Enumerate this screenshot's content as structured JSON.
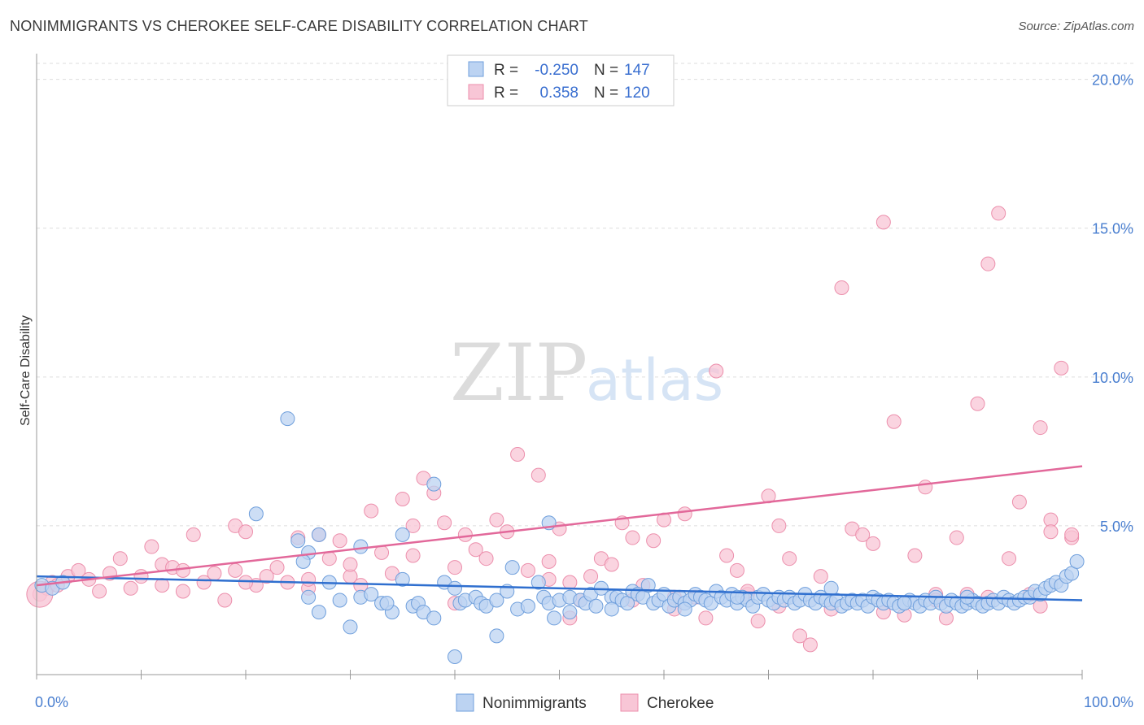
{
  "header": {
    "title": "NONIMMIGRANTS VS CHEROKEE SELF-CARE DISABILITY CORRELATION CHART",
    "source": "Source: ZipAtlas.com"
  },
  "watermark": {
    "zip": "ZIP",
    "atlas": "atlas"
  },
  "colors": {
    "blue_fill": "#bcd3f2",
    "blue_stroke": "#6f9fdc",
    "blue_line": "#2f6fcf",
    "pink_fill": "#f8c6d6",
    "pink_stroke": "#ec8fac",
    "pink_line": "#e2689a",
    "grid": "#dddddd",
    "tick_label": "#4a7fd0"
  },
  "legend_top": {
    "rows": [
      {
        "r_label": "R =",
        "r_value": "-0.250",
        "n_label": "N =",
        "n_value": "147"
      },
      {
        "r_label": "R =",
        "r_value": "0.358",
        "n_label": "N =",
        "n_value": "120"
      }
    ]
  },
  "legend_bottom": {
    "items": [
      "Nonimmigrants",
      "Cherokee"
    ]
  },
  "chart_data": {
    "type": "scatter",
    "title": "NONIMMIGRANTS VS CHEROKEE SELF-CARE DISABILITY CORRELATION CHART",
    "xlabel": "",
    "ylabel": "Self-Care Disability",
    "xlim": [
      0,
      100
    ],
    "ylim": [
      0,
      20.7
    ],
    "x_tick_labels": [
      "0.0%",
      "100.0%"
    ],
    "y_ticks": [
      5,
      10,
      15,
      20
    ],
    "y_tick_labels": [
      "5.0%",
      "10.0%",
      "15.0%",
      "20.0%"
    ],
    "grid": true,
    "legend_placement": "top-center",
    "series": [
      {
        "name": "Nonimmigrants",
        "trend": {
          "x": [
            0,
            100
          ],
          "y": [
            3.3,
            2.5
          ]
        },
        "points": [
          [
            0.5,
            3.0
          ],
          [
            1.5,
            2.9
          ],
          [
            2.5,
            3.1
          ],
          [
            24,
            8.6
          ],
          [
            21,
            5.4
          ],
          [
            31,
            4.3
          ],
          [
            25,
            4.5
          ],
          [
            26,
            4.1
          ],
          [
            25.5,
            3.8
          ],
          [
            27,
            4.7
          ],
          [
            35,
            4.7
          ],
          [
            38,
            6.4
          ],
          [
            49,
            5.1
          ],
          [
            26,
            2.6
          ],
          [
            27,
            2.1
          ],
          [
            28,
            3.1
          ],
          [
            29,
            2.5
          ],
          [
            30,
            1.6
          ],
          [
            31,
            2.6
          ],
          [
            32,
            2.7
          ],
          [
            33,
            2.4
          ],
          [
            34,
            2.1
          ],
          [
            35,
            3.2
          ],
          [
            36,
            2.3
          ],
          [
            36.5,
            2.4
          ],
          [
            37,
            2.1
          ],
          [
            38,
            1.9
          ],
          [
            39,
            3.1
          ],
          [
            40,
            2.9
          ],
          [
            40.5,
            2.4
          ],
          [
            41,
            2.5
          ],
          [
            42,
            2.6
          ],
          [
            42.5,
            2.4
          ],
          [
            43,
            2.3
          ],
          [
            44,
            2.5
          ],
          [
            45,
            2.8
          ],
          [
            45.5,
            3.6
          ],
          [
            46,
            2.2
          ],
          [
            47,
            2.3
          ],
          [
            48,
            3.1
          ],
          [
            48.5,
            2.6
          ],
          [
            49,
            2.4
          ],
          [
            49.5,
            1.9
          ],
          [
            50,
            2.5
          ],
          [
            51,
            2.6
          ],
          [
            52,
            2.5
          ],
          [
            52.5,
            2.4
          ],
          [
            53,
            2.7
          ],
          [
            53.5,
            2.3
          ],
          [
            54,
            2.9
          ],
          [
            55,
            2.6
          ],
          [
            55.5,
            2.6
          ],
          [
            56,
            2.5
          ],
          [
            56.5,
            2.4
          ],
          [
            57,
            2.8
          ],
          [
            57.5,
            2.7
          ],
          [
            58,
            2.6
          ],
          [
            58.5,
            3.0
          ],
          [
            59,
            2.4
          ],
          [
            59.5,
            2.5
          ],
          [
            60,
            2.7
          ],
          [
            60.5,
            2.3
          ],
          [
            61,
            2.5
          ],
          [
            61.5,
            2.6
          ],
          [
            62,
            2.4
          ],
          [
            62.5,
            2.5
          ],
          [
            63,
            2.7
          ],
          [
            63.5,
            2.6
          ],
          [
            64,
            2.5
          ],
          [
            64.5,
            2.4
          ],
          [
            65,
            2.8
          ],
          [
            65.5,
            2.6
          ],
          [
            66,
            2.5
          ],
          [
            66.5,
            2.7
          ],
          [
            67,
            2.4
          ],
          [
            67.5,
            2.6
          ],
          [
            68,
            2.5
          ],
          [
            68.5,
            2.3
          ],
          [
            69,
            2.6
          ],
          [
            69.5,
            2.7
          ],
          [
            70,
            2.5
          ],
          [
            70.5,
            2.4
          ],
          [
            71,
            2.6
          ],
          [
            71.5,
            2.5
          ],
          [
            72,
            2.6
          ],
          [
            72.5,
            2.4
          ],
          [
            73,
            2.5
          ],
          [
            73.5,
            2.7
          ],
          [
            74,
            2.5
          ],
          [
            74.5,
            2.4
          ],
          [
            75,
            2.6
          ],
          [
            75.5,
            2.5
          ],
          [
            76,
            2.4
          ],
          [
            76.5,
            2.5
          ],
          [
            77,
            2.3
          ],
          [
            77.5,
            2.4
          ],
          [
            78,
            2.5
          ],
          [
            78.5,
            2.4
          ],
          [
            79,
            2.5
          ],
          [
            79.5,
            2.3
          ],
          [
            80,
            2.6
          ],
          [
            80.5,
            2.5
          ],
          [
            81,
            2.4
          ],
          [
            81.5,
            2.5
          ],
          [
            82,
            2.4
          ],
          [
            82.5,
            2.3
          ],
          [
            83,
            2.4
          ],
          [
            83.5,
            2.5
          ],
          [
            84,
            2.4
          ],
          [
            84.5,
            2.3
          ],
          [
            85,
            2.5
          ],
          [
            85.5,
            2.4
          ],
          [
            86,
            2.6
          ],
          [
            86.5,
            2.4
          ],
          [
            87,
            2.3
          ],
          [
            87.5,
            2.5
          ],
          [
            88,
            2.4
          ],
          [
            88.5,
            2.3
          ],
          [
            89,
            2.4
          ],
          [
            89.5,
            2.5
          ],
          [
            90,
            2.4
          ],
          [
            90.5,
            2.3
          ],
          [
            91,
            2.4
          ],
          [
            91.5,
            2.5
          ],
          [
            92,
            2.4
          ],
          [
            92.5,
            2.6
          ],
          [
            93,
            2.5
          ],
          [
            93.5,
            2.4
          ],
          [
            94,
            2.5
          ],
          [
            94.5,
            2.6
          ],
          [
            95,
            2.6
          ],
          [
            95.5,
            2.8
          ],
          [
            96,
            2.7
          ],
          [
            96.5,
            2.9
          ],
          [
            97,
            3.0
          ],
          [
            97.5,
            3.1
          ],
          [
            98,
            3.0
          ],
          [
            98.5,
            3.3
          ],
          [
            99,
            3.4
          ],
          [
            99.5,
            3.8
          ],
          [
            55,
            2.2
          ],
          [
            40,
            0.6
          ],
          [
            44,
            1.3
          ],
          [
            33.5,
            2.4
          ],
          [
            51,
            2.1
          ],
          [
            62,
            2.2
          ],
          [
            67,
            2.6
          ],
          [
            76,
            2.9
          ],
          [
            83,
            2.4
          ],
          [
            89,
            2.6
          ]
        ]
      },
      {
        "name": "Cherokee",
        "trend": {
          "x": [
            0,
            100
          ],
          "y": [
            3.0,
            7.0
          ]
        },
        "points": [
          [
            0.3,
            2.7
          ],
          [
            1,
            2.9
          ],
          [
            1.5,
            3.1
          ],
          [
            2,
            3.0
          ],
          [
            3,
            3.3
          ],
          [
            4,
            3.5
          ],
          [
            5,
            3.2
          ],
          [
            6,
            2.8
          ],
          [
            7,
            3.4
          ],
          [
            8,
            3.9
          ],
          [
            9,
            2.9
          ],
          [
            10,
            3.3
          ],
          [
            11,
            4.3
          ],
          [
            12,
            3.7
          ],
          [
            13,
            3.6
          ],
          [
            14,
            2.8
          ],
          [
            15,
            4.7
          ],
          [
            16,
            3.1
          ],
          [
            17,
            3.4
          ],
          [
            18,
            2.5
          ],
          [
            19,
            5.0
          ],
          [
            20,
            4.8
          ],
          [
            21,
            3.0
          ],
          [
            22,
            3.3
          ],
          [
            23,
            3.6
          ],
          [
            24,
            3.1
          ],
          [
            25,
            4.6
          ],
          [
            26,
            2.9
          ],
          [
            27,
            4.7
          ],
          [
            28,
            3.9
          ],
          [
            29,
            4.5
          ],
          [
            30,
            3.3
          ],
          [
            31,
            3.0
          ],
          [
            32,
            5.5
          ],
          [
            33,
            4.1
          ],
          [
            34,
            3.4
          ],
          [
            35,
            5.9
          ],
          [
            36,
            5.0
          ],
          [
            37,
            6.6
          ],
          [
            38,
            6.1
          ],
          [
            39,
            5.1
          ],
          [
            40,
            3.6
          ],
          [
            41,
            4.7
          ],
          [
            42,
            4.2
          ],
          [
            43,
            3.9
          ],
          [
            44,
            5.2
          ],
          [
            45,
            4.8
          ],
          [
            46,
            7.4
          ],
          [
            47,
            3.5
          ],
          [
            48,
            6.7
          ],
          [
            49,
            3.8
          ],
          [
            50,
            4.9
          ],
          [
            51,
            3.1
          ],
          [
            52,
            2.5
          ],
          [
            53,
            3.3
          ],
          [
            54,
            3.9
          ],
          [
            55,
            3.7
          ],
          [
            56,
            5.1
          ],
          [
            57,
            4.6
          ],
          [
            58,
            3.0
          ],
          [
            59,
            4.5
          ],
          [
            60,
            5.2
          ],
          [
            61,
            2.2
          ],
          [
            62,
            5.4
          ],
          [
            63,
            2.6
          ],
          [
            64,
            1.9
          ],
          [
            65,
            10.2
          ],
          [
            66,
            4.0
          ],
          [
            67,
            3.5
          ],
          [
            68,
            2.7
          ],
          [
            69,
            1.8
          ],
          [
            70,
            6.0
          ],
          [
            71,
            5.0
          ],
          [
            72,
            3.9
          ],
          [
            73,
            1.3
          ],
          [
            74,
            1.0
          ],
          [
            75,
            3.3
          ],
          [
            76,
            2.2
          ],
          [
            77,
            13.0
          ],
          [
            78,
            4.9
          ],
          [
            79,
            4.7
          ],
          [
            80,
            4.4
          ],
          [
            81,
            15.2
          ],
          [
            82,
            8.5
          ],
          [
            83,
            2.0
          ],
          [
            84,
            4.0
          ],
          [
            85,
            6.3
          ],
          [
            86,
            2.7
          ],
          [
            87,
            1.9
          ],
          [
            88,
            4.6
          ],
          [
            89,
            2.7
          ],
          [
            90,
            9.1
          ],
          [
            91,
            13.8
          ],
          [
            92,
            15.5
          ],
          [
            93,
            3.9
          ],
          [
            94,
            5.8
          ],
          [
            95,
            2.7
          ],
          [
            96,
            8.3
          ],
          [
            97,
            5.2
          ],
          [
            98,
            10.3
          ],
          [
            99,
            4.6
          ],
          [
            14,
            3.5
          ],
          [
            19,
            3.5
          ],
          [
            26,
            3.2
          ],
          [
            36,
            4.0
          ],
          [
            49,
            3.2
          ],
          [
            57,
            2.5
          ],
          [
            68,
            2.8
          ],
          [
            86,
            2.5
          ],
          [
            96,
            2.3
          ],
          [
            97,
            4.8
          ],
          [
            99,
            4.7
          ],
          [
            12,
            3.0
          ],
          [
            20,
            3.1
          ],
          [
            30,
            3.7
          ],
          [
            40,
            2.4
          ],
          [
            51,
            1.9
          ],
          [
            61,
            2.6
          ],
          [
            71,
            2.3
          ],
          [
            81,
            2.1
          ],
          [
            91,
            2.6
          ]
        ]
      }
    ]
  }
}
